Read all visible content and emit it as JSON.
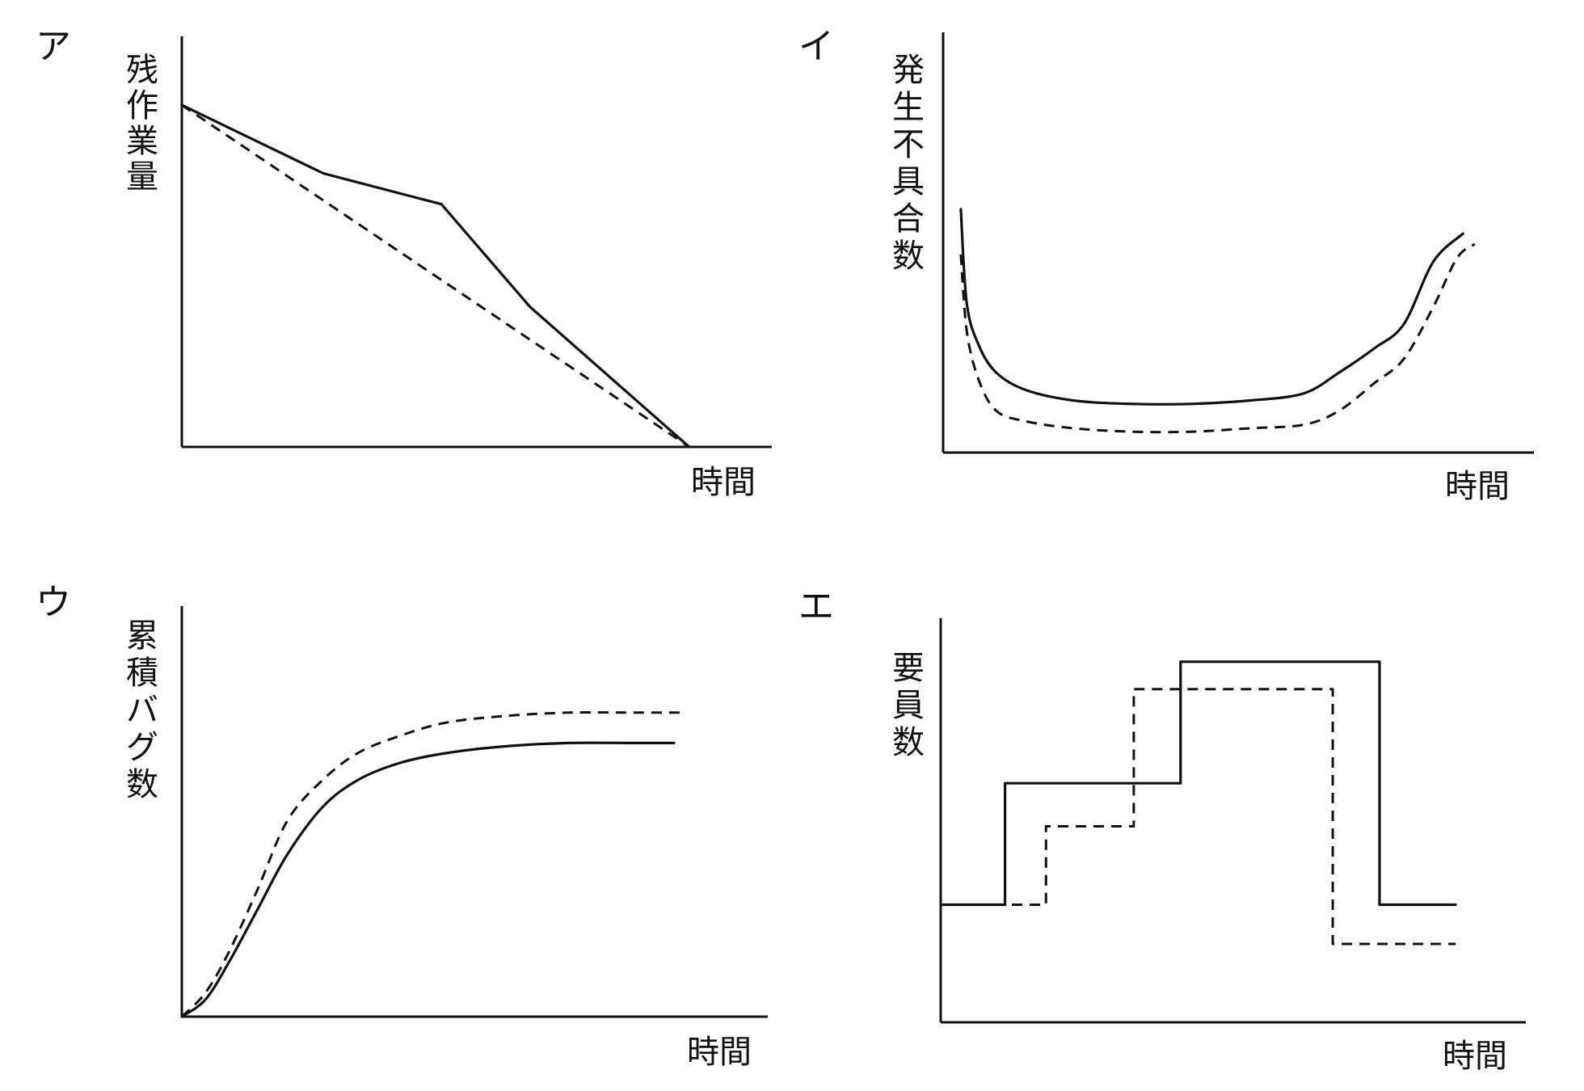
{
  "chart_data": [
    {
      "type": "line",
      "panel_label": "ア",
      "ylabel": "残作業量",
      "xlabel": "時間",
      "xlim": [
        0,
        100
      ],
      "ylim": [
        0,
        100
      ],
      "series": [
        {
          "style": "solid",
          "x": [
            0,
            24,
            44,
            59,
            86
          ],
          "y": [
            100,
            80,
            71,
            41,
            0
          ]
        },
        {
          "style": "dashed",
          "x": [
            0,
            86
          ],
          "y": [
            100,
            0
          ]
        }
      ]
    },
    {
      "type": "line",
      "panel_label": "イ",
      "ylabel": "発生不具合数",
      "xlabel": "時間",
      "xlim": [
        0,
        100
      ],
      "ylim": [
        0,
        100
      ],
      "series": [
        {
          "style": "solid",
          "x": [
            3,
            4,
            6,
            9,
            14,
            22,
            32,
            42,
            52,
            61,
            67,
            73,
            78,
            83,
            88
          ],
          "y": [
            70,
            43,
            31,
            23,
            18,
            15,
            14,
            14,
            15,
            17,
            23,
            30,
            37,
            55,
            63
          ]
        },
        {
          "style": "dashed",
          "x": [
            3,
            4,
            6,
            9,
            14,
            22,
            32,
            42,
            52,
            61,
            67,
            73,
            78,
            83,
            87,
            90
          ],
          "y": [
            57,
            35,
            21,
            12,
            9,
            7,
            6,
            6,
            7,
            8,
            12,
            20,
            27,
            42,
            56,
            60
          ]
        }
      ]
    },
    {
      "type": "line",
      "panel_label": "ウ",
      "ylabel": "累積バグ数",
      "xlabel": "時間",
      "xlim": [
        0,
        100
      ],
      "ylim": [
        0,
        100
      ],
      "series": [
        {
          "style": "solid",
          "x": [
            0,
            4,
            8,
            13,
            18,
            24,
            30,
            37,
            45,
            55,
            66,
            77,
            84
          ],
          "y": [
            0,
            5,
            16,
            32,
            48,
            62,
            70,
            75,
            78,
            80,
            81,
            81,
            81
          ]
        },
        {
          "style": "dashed",
          "x": [
            0,
            4,
            8,
            13,
            18,
            24,
            30,
            37,
            45,
            55,
            66,
            77,
            85
          ],
          "y": [
            0,
            7,
            19,
            38,
            58,
            70,
            78,
            83,
            87,
            89,
            90,
            90,
            90
          ]
        }
      ]
    },
    {
      "type": "line",
      "panel_label": "エ",
      "ylabel": "要員数",
      "xlabel": "時間",
      "xlim": [
        0,
        100
      ],
      "ylim": [
        0,
        100
      ],
      "series": [
        {
          "style": "solid",
          "step": true,
          "x": [
            0,
            11,
            11,
            41,
            41,
            75,
            75,
            88
          ],
          "y": [
            30,
            30,
            61,
            61,
            92,
            92,
            30,
            30
          ]
        },
        {
          "style": "dashed",
          "step": true,
          "x": [
            0,
            18,
            18,
            33,
            33,
            67,
            67,
            88
          ],
          "y": [
            30,
            30,
            50,
            50,
            85,
            85,
            20,
            20
          ]
        }
      ]
    }
  ]
}
